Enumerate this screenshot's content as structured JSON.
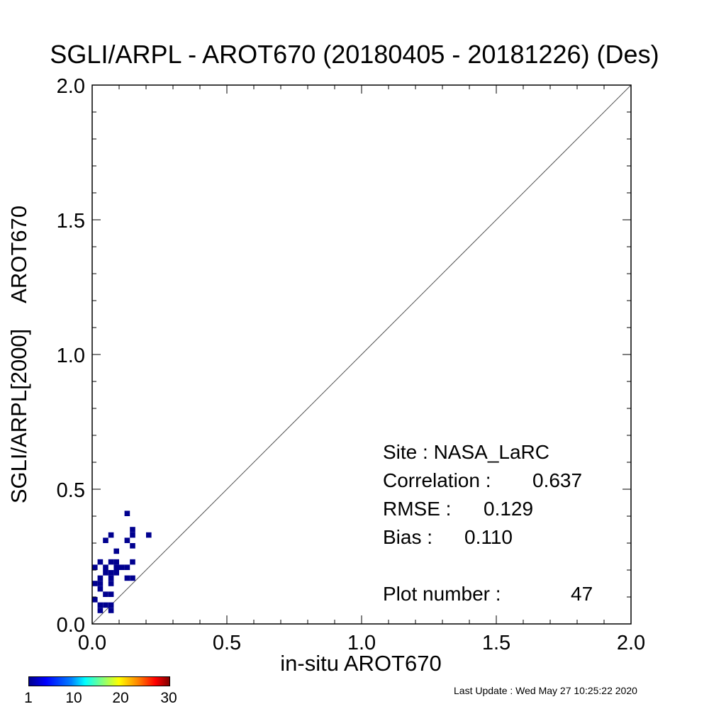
{
  "chart_data": {
    "type": "heatmap",
    "title": "SGLI/ARPL - AROT670 (20180405 - 20181226) (Des)",
    "xlabel": "in-situ AROT670",
    "ylabel": [
      "SGLI/ARPL[2000]",
      "AROT670"
    ],
    "xlim": [
      0.0,
      2.0
    ],
    "ylim": [
      0.0,
      2.0
    ],
    "x_ticks": [
      "0.0",
      "0.5",
      "1.0",
      "1.5",
      "2.0"
    ],
    "y_ticks": [
      "0.0",
      "0.5",
      "1.0",
      "1.5",
      "2.0"
    ],
    "one_to_one_line": true,
    "bin_size": 0.02,
    "cells": [
      [
        0.0,
        0.2
      ],
      [
        0.0,
        0.14
      ],
      [
        0.0,
        0.08
      ],
      [
        0.02,
        0.22
      ],
      [
        0.02,
        0.16
      ],
      [
        0.02,
        0.14
      ],
      [
        0.02,
        0.12
      ],
      [
        0.02,
        0.06
      ],
      [
        0.02,
        0.04
      ],
      [
        0.04,
        0.3
      ],
      [
        0.04,
        0.2
      ],
      [
        0.04,
        0.18
      ],
      [
        0.04,
        0.1
      ],
      [
        0.04,
        0.06
      ],
      [
        0.06,
        0.32
      ],
      [
        0.06,
        0.22
      ],
      [
        0.06,
        0.18
      ],
      [
        0.06,
        0.16
      ],
      [
        0.06,
        0.14
      ],
      [
        0.06,
        0.1
      ],
      [
        0.06,
        0.06
      ],
      [
        0.06,
        0.04
      ],
      [
        0.08,
        0.26
      ],
      [
        0.08,
        0.22
      ],
      [
        0.08,
        0.2
      ],
      [
        0.08,
        0.18
      ],
      [
        0.1,
        0.2
      ],
      [
        0.12,
        0.4
      ],
      [
        0.12,
        0.3
      ],
      [
        0.12,
        0.2
      ],
      [
        0.12,
        0.16
      ],
      [
        0.14,
        0.34
      ],
      [
        0.14,
        0.32
      ],
      [
        0.14,
        0.28
      ],
      [
        0.14,
        0.22
      ],
      [
        0.14,
        0.16
      ],
      [
        0.2,
        0.32
      ]
    ],
    "cell_count": 1,
    "colorbar": {
      "min": 1,
      "max": 30,
      "ticks": [
        "1",
        "10",
        "20",
        "30"
      ]
    }
  },
  "stats": {
    "site_label": "Site : NASA_LaRC",
    "correlation_label": "Correlation :",
    "correlation_value": "0.637",
    "rmse_label": "RMSE :",
    "rmse_value": "0.129",
    "bias_label": "Bias :",
    "bias_value": "0.110",
    "plot_number_label": "Plot number :",
    "plot_number_value": "47"
  },
  "footer": {
    "last_update": "Last Update : Wed May 27 10:25:22 2020"
  },
  "colors": {
    "cell": "#00008f",
    "diagonal": "#555555"
  }
}
